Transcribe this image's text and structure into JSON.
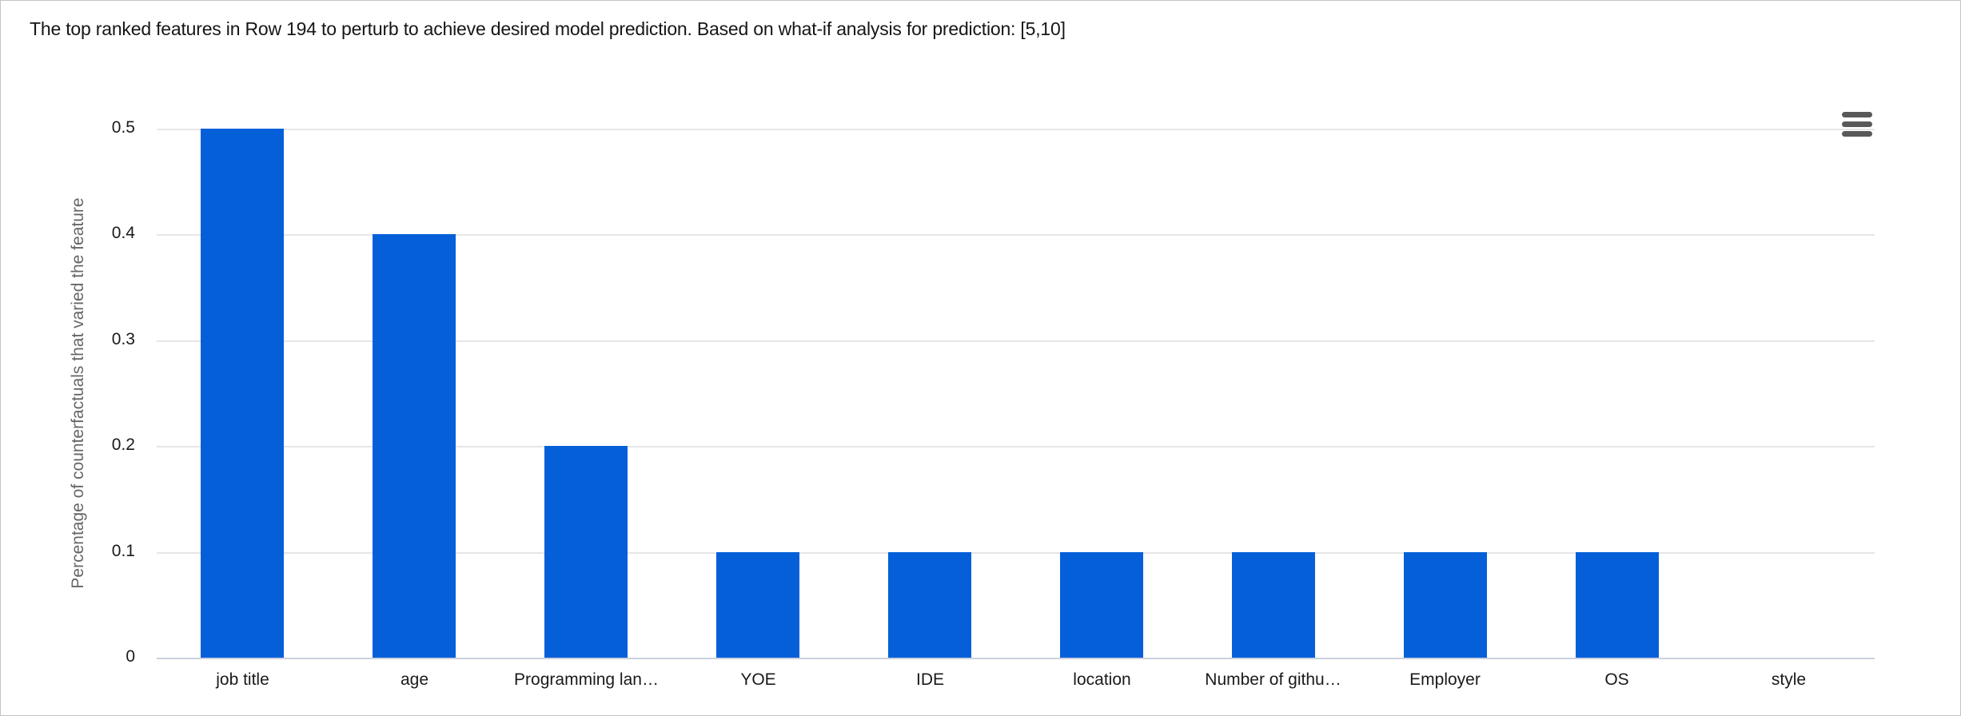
{
  "header": {
    "title": "The top ranked features in Row 194 to perturb to achieve desired model prediction. Based on what-if analysis for prediction: [5,10]"
  },
  "toolbar": {
    "menu_icon": "hamburger-menu"
  },
  "chart_data": {
    "type": "bar",
    "title": "",
    "categories": [
      "job title",
      "age",
      "Programming lan…",
      "YOE",
      "IDE",
      "location",
      "Number of githu…",
      "Employer",
      "OS",
      "style"
    ],
    "values": [
      0.5,
      0.4,
      0.2,
      0.1,
      0.1,
      0.1,
      0.1,
      0.1,
      0.1,
      0
    ],
    "xlabel": "",
    "ylabel": "Percentage of counterfactuals that varied the feature",
    "ylim": [
      0,
      0.5
    ],
    "yticks": [
      0,
      0.1,
      0.2,
      0.3,
      0.4,
      0.5
    ],
    "ytick_labels": [
      "0",
      "0.1",
      "0.2",
      "0.3",
      "0.4",
      "0.5"
    ],
    "grid": true,
    "legend_position": "none",
    "bar_color": "#055fd9",
    "gridline_color": "#e6e6e6",
    "axisline_color": "#ccd1dd",
    "tick_label_color": "#1a1a1a",
    "ylabel_color": "#666666"
  }
}
